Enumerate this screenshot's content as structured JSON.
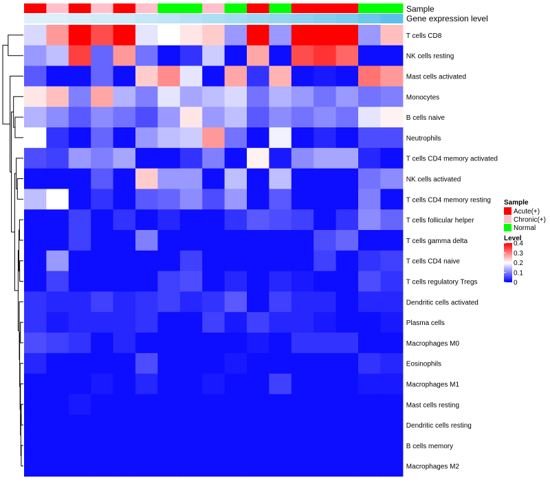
{
  "chart_data": {
    "type": "heatmap",
    "title": "",
    "annotation_labels": [
      "Sample",
      "Gene expression level"
    ],
    "sample_groups": [
      "Acute(+)",
      "Chronic(+)",
      "Acute(+)",
      "Chronic(+)",
      "Acute(+)",
      "Chronic(+)",
      "Normal",
      "Normal",
      "Chronic(+)",
      "Normal",
      "Acute(+)",
      "Normal",
      "Acute(+)",
      "Acute(+)",
      "Acute(+)",
      "Normal",
      "Normal"
    ],
    "gene_expression_level": [
      0.1,
      0.12,
      0.15,
      0.18,
      0.2,
      0.25,
      0.3,
      0.35,
      0.4,
      0.45,
      0.5,
      0.55,
      0.6,
      0.65,
      0.7,
      0.8,
      0.9
    ],
    "row_labels": [
      "T cells CD8",
      "NK cells resting",
      "Mast cells activated",
      "Monocytes",
      "B cells naive",
      "Neutrophils",
      "T cells CD4 memory activated",
      "NK cells activated",
      "T cells CD4 memory resting",
      "T cells follicular helper",
      "T cells gamma delta",
      "T cells CD4 naive",
      "T cells regulatory  Tregs",
      "Dendritic cells activated",
      "Plasma cells",
      "Macrophages M0",
      "Eosinophils",
      "Macrophages M1",
      "Mast cells resting",
      "Dendritic cells resting",
      "B cells memory",
      "Macrophages M2"
    ],
    "values": [
      [
        0.17,
        0.28,
        0.4,
        0.34,
        0.4,
        0.18,
        0.2,
        0.22,
        0.24,
        0.12,
        0.4,
        0.12,
        0.4,
        0.4,
        0.4,
        0.12,
        0.25
      ],
      [
        0.12,
        0.15,
        0.35,
        0.08,
        0.28,
        0.09,
        0.01,
        0.04,
        0.16,
        0.01,
        0.27,
        0.01,
        0.34,
        0.36,
        0.32,
        0.01,
        0.01
      ],
      [
        0.07,
        0.01,
        0.01,
        0.08,
        0.01,
        0.24,
        0.29,
        0.18,
        0.01,
        0.27,
        0.04,
        0.26,
        0.01,
        0.02,
        0.01,
        0.31,
        0.28
      ],
      [
        0.22,
        0.25,
        0.1,
        0.27,
        0.14,
        0.1,
        0.18,
        0.13,
        0.15,
        0.17,
        0.09,
        0.14,
        0.12,
        0.09,
        0.12,
        0.09,
        0.1
      ],
      [
        0.14,
        0.11,
        0.07,
        0.11,
        0.09,
        0.06,
        0.12,
        0.22,
        0.12,
        0.15,
        0.07,
        0.11,
        0.09,
        0.11,
        0.09,
        0.18,
        0.21
      ],
      [
        0.2,
        0.04,
        0.01,
        0.08,
        0.01,
        0.12,
        0.15,
        0.16,
        0.28,
        0.09,
        0.01,
        0.19,
        0.01,
        0.03,
        0.01,
        0.06,
        0.06
      ],
      [
        0.06,
        0.05,
        0.12,
        0.1,
        0.13,
        0.01,
        0.01,
        0.04,
        0.1,
        0.01,
        0.21,
        0.02,
        0.11,
        0.13,
        0.13,
        0.03,
        0.01
      ],
      [
        0.01,
        0.01,
        0.01,
        0.07,
        0.01,
        0.24,
        0.12,
        0.12,
        0.01,
        0.15,
        0.01,
        0.15,
        0.01,
        0.01,
        0.01,
        0.09,
        0.11
      ],
      [
        0.15,
        0.2,
        0.01,
        0.04,
        0.01,
        0.07,
        0.08,
        0.11,
        0.06,
        0.12,
        0.01,
        0.07,
        0.01,
        0.01,
        0.01,
        0.1,
        0.01
      ],
      [
        0.01,
        0.01,
        0.05,
        0.01,
        0.04,
        0.01,
        0.03,
        0.01,
        0.01,
        0.04,
        0.07,
        0.06,
        0.05,
        0.01,
        0.04,
        0.11,
        0.08
      ],
      [
        0.01,
        0.01,
        0.05,
        0.01,
        0.01,
        0.1,
        0.01,
        0.01,
        0.01,
        0.01,
        0.01,
        0.01,
        0.01,
        0.06,
        0.08,
        0.01,
        0.01
      ],
      [
        0.01,
        0.12,
        0.01,
        0.01,
        0.01,
        0.01,
        0.01,
        0.05,
        0.01,
        0.01,
        0.01,
        0.01,
        0.01,
        0.05,
        0.01,
        0.04,
        0.05
      ],
      [
        0.01,
        0.05,
        0.01,
        0.01,
        0.01,
        0.01,
        0.05,
        0.06,
        0.01,
        0.03,
        0.01,
        0.03,
        0.02,
        0.01,
        0.01,
        0.06,
        0.04
      ],
      [
        0.04,
        0.03,
        0.03,
        0.05,
        0.03,
        0.04,
        0.05,
        0.03,
        0.04,
        0.07,
        0.01,
        0.05,
        0.03,
        0.03,
        0.01,
        0.03,
        0.03
      ],
      [
        0.04,
        0.02,
        0.03,
        0.03,
        0.03,
        0.04,
        0.01,
        0.01,
        0.05,
        0.02,
        0.05,
        0.03,
        0.03,
        0.02,
        0.01,
        0.01,
        0.02
      ],
      [
        0.06,
        0.05,
        0.04,
        0.01,
        0.03,
        0.01,
        0.01,
        0.01,
        0.01,
        0.01,
        0.02,
        0.01,
        0.04,
        0.04,
        0.04,
        0.01,
        0.01
      ],
      [
        0.03,
        0.01,
        0.01,
        0.01,
        0.01,
        0.06,
        0.01,
        0.01,
        0.01,
        0.02,
        0.01,
        0.01,
        0.01,
        0.01,
        0.01,
        0.04,
        0.03
      ],
      [
        0.01,
        0.01,
        0.01,
        0.02,
        0.01,
        0.03,
        0.01,
        0.01,
        0.02,
        0.01,
        0.01,
        0.05,
        0.01,
        0.01,
        0.01,
        0.02,
        0.02
      ],
      [
        0.01,
        0.01,
        0.02,
        0.01,
        0.01,
        0.01,
        0.01,
        0.01,
        0.01,
        0.01,
        0.01,
        0.01,
        0.01,
        0.01,
        0.01,
        0.01,
        0.01
      ],
      [
        0.01,
        0.01,
        0.01,
        0.01,
        0.01,
        0.01,
        0.01,
        0.01,
        0.01,
        0.01,
        0.01,
        0.01,
        0.01,
        0.01,
        0.01,
        0.01,
        0.01
      ],
      [
        0.01,
        0.01,
        0.01,
        0.01,
        0.01,
        0.01,
        0.01,
        0.01,
        0.01,
        0.01,
        0.01,
        0.01,
        0.01,
        0.01,
        0.01,
        0.01,
        0.01
      ],
      [
        0.01,
        0.01,
        0.01,
        0.01,
        0.01,
        0.01,
        0.01,
        0.01,
        0.01,
        0.01,
        0.01,
        0.01,
        0.01,
        0.01,
        0.01,
        0.01,
        0.01
      ]
    ],
    "legend_sample": {
      "title": "Sample",
      "items": [
        {
          "label": "Acute(+)",
          "color": "#ff0000"
        },
        {
          "label": "Chronic(+)",
          "color": "#ffc0cb"
        },
        {
          "label": "Normal",
          "color": "#00ff00"
        }
      ]
    },
    "legend_level": {
      "title": "Level",
      "ticks": [
        0.4,
        0.3,
        0.2,
        0.1,
        0
      ],
      "tick_labels": [
        "0.4",
        "0.3",
        "0.2",
        "0.1",
        "0"
      ],
      "range": [
        0,
        0.4
      ]
    },
    "color_scale": {
      "low": "#0000ff",
      "mid": "#ffffff",
      "high": "#ff0000"
    },
    "gene_level_colors": {
      "low": "#dff0fa",
      "high": "#5bc0eb"
    }
  }
}
